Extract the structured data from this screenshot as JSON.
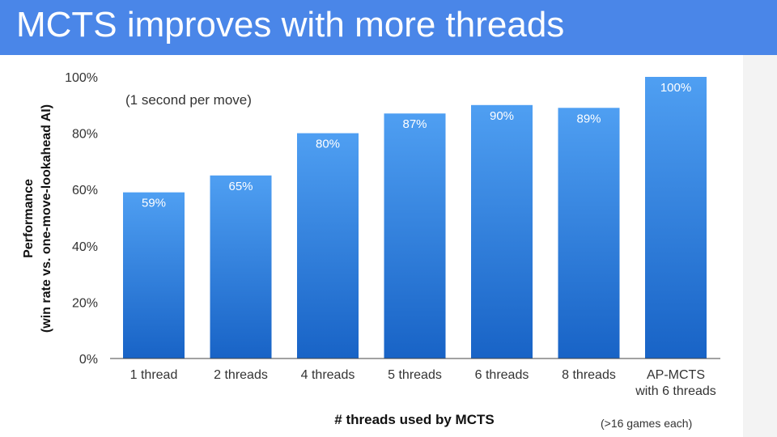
{
  "slide": {
    "title": "MCTS improves with more threads"
  },
  "colors": {
    "title_bar": "#4a86e8",
    "bar_top": "#4f9ff2",
    "bar_bottom": "#1863c6",
    "axis": "#333333",
    "data_label": "#ffffff"
  },
  "chart_data": {
    "type": "bar",
    "categories": [
      [
        "1 thread"
      ],
      [
        "2 threads"
      ],
      [
        "4 threads"
      ],
      [
        "5 threads"
      ],
      [
        "6 threads"
      ],
      [
        "8 threads"
      ],
      [
        "AP-MCTS",
        "with 6 threads"
      ]
    ],
    "values": [
      59,
      65,
      80,
      87,
      90,
      89,
      100
    ],
    "data_labels": [
      "59%",
      "65%",
      "80%",
      "87%",
      "90%",
      "89%",
      "100%"
    ],
    "ylim": [
      0,
      100
    ],
    "yticks": [
      0,
      20,
      40,
      60,
      80,
      100
    ],
    "ytick_labels": [
      "0%",
      "20%",
      "40%",
      "60%",
      "80%",
      "100%"
    ],
    "ylabel": [
      "Performance",
      "(win rate vs. one-move-lookahead AI)"
    ],
    "xlabel": "# threads used by MCTS",
    "annotation": "(1 second per move)",
    "footnote": "(>16 games each)",
    "grid": false,
    "legend": "none"
  }
}
